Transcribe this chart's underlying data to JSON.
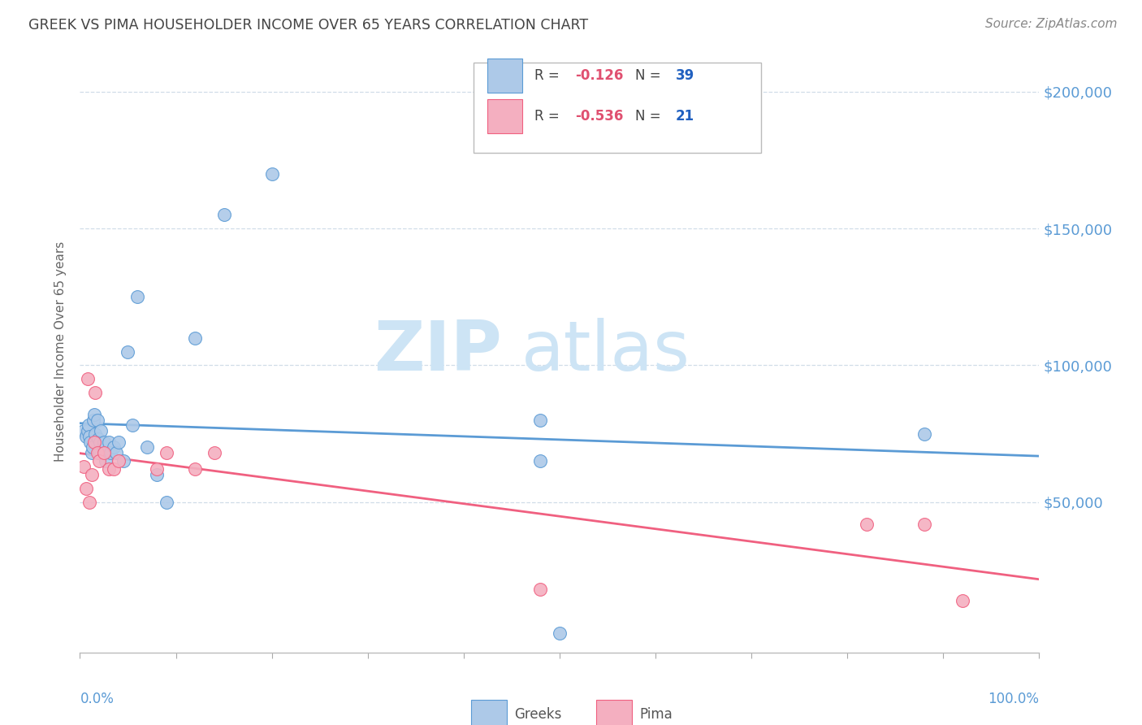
{
  "title": "GREEK VS PIMA HOUSEHOLDER INCOME OVER 65 YEARS CORRELATION CHART",
  "source": "Source: ZipAtlas.com",
  "ylabel": "Householder Income Over 65 years",
  "y_tick_values": [
    50000,
    100000,
    150000,
    200000
  ],
  "ylim": [
    -5000,
    215000
  ],
  "xlim": [
    0.0,
    1.0
  ],
  "greek_color": "#adc9e8",
  "pima_color": "#f4afc0",
  "greek_line_color": "#5b9bd5",
  "pima_line_color": "#f06080",
  "greek_r": -0.126,
  "greek_n": 39,
  "pima_r": -0.536,
  "pima_n": 21,
  "legend_r_color": "#e05070",
  "legend_n_color": "#2060c0",
  "watermark_zip": "ZIP",
  "watermark_atlas": "atlas",
  "watermark_color": "#cde4f5",
  "background_color": "#ffffff",
  "title_color": "#444444",
  "source_color": "#888888",
  "grid_color": "#d0dde8",
  "right_label_color": "#5b9bd5",
  "greek_x": [
    0.004,
    0.006,
    0.008,
    0.009,
    0.01,
    0.011,
    0.012,
    0.013,
    0.014,
    0.015,
    0.016,
    0.018,
    0.019,
    0.02,
    0.021,
    0.022,
    0.024,
    0.025,
    0.026,
    0.027,
    0.03,
    0.032,
    0.035,
    0.038,
    0.04,
    0.045,
    0.05,
    0.055,
    0.06,
    0.07,
    0.08,
    0.09,
    0.12,
    0.15,
    0.2,
    0.48,
    0.5,
    0.88,
    0.48
  ],
  "greek_y": [
    76000,
    74000,
    76000,
    78000,
    74000,
    72000,
    68000,
    70000,
    80000,
    82000,
    75000,
    80000,
    73000,
    68000,
    72000,
    76000,
    70000,
    72000,
    68000,
    65000,
    72000,
    68000,
    70000,
    68000,
    72000,
    65000,
    105000,
    78000,
    125000,
    70000,
    60000,
    50000,
    110000,
    155000,
    170000,
    80000,
    2000,
    75000,
    65000
  ],
  "pima_x": [
    0.004,
    0.006,
    0.008,
    0.01,
    0.012,
    0.015,
    0.016,
    0.018,
    0.02,
    0.025,
    0.03,
    0.035,
    0.04,
    0.08,
    0.09,
    0.12,
    0.14,
    0.48,
    0.82,
    0.88,
    0.92
  ],
  "pima_y": [
    63000,
    55000,
    95000,
    50000,
    60000,
    72000,
    90000,
    68000,
    65000,
    68000,
    62000,
    62000,
    65000,
    62000,
    68000,
    62000,
    68000,
    18000,
    42000,
    42000,
    14000
  ]
}
